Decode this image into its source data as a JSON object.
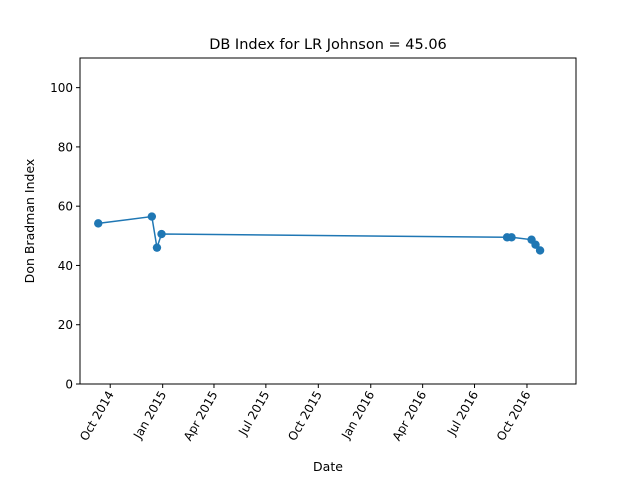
{
  "chart_data": {
    "type": "line",
    "title": "DB Index for LR Johnson = 45.06",
    "xlabel": "Date",
    "ylabel": "Don Bradman Index",
    "xlim": [
      "2014-08-09",
      "2016-12-26"
    ],
    "ylim": [
      0,
      110
    ],
    "x_ticks": [
      {
        "date": "2014-10-01",
        "label": "Oct 2014"
      },
      {
        "date": "2015-01-01",
        "label": "Jan 2015"
      },
      {
        "date": "2015-04-01",
        "label": "Apr 2015"
      },
      {
        "date": "2015-07-01",
        "label": "Jul 2015"
      },
      {
        "date": "2015-10-01",
        "label": "Oct 2015"
      },
      {
        "date": "2016-01-01",
        "label": "Jan 2016"
      },
      {
        "date": "2016-04-01",
        "label": "Apr 2016"
      },
      {
        "date": "2016-07-01",
        "label": "Jul 2016"
      },
      {
        "date": "2016-10-01",
        "label": "Oct 2016"
      }
    ],
    "y_ticks": [
      0,
      20,
      40,
      60,
      80,
      100
    ],
    "grid": false,
    "color": "#1f77b4",
    "series": [
      {
        "x": [
          "2014-09-10",
          "2014-12-13",
          "2014-12-22",
          "2014-12-30",
          "2016-08-27",
          "2016-09-04",
          "2016-10-09",
          "2016-10-16",
          "2016-10-24"
        ],
        "y": [
          54.2,
          56.5,
          46.0,
          50.6,
          49.5,
          49.5,
          48.7,
          47.0,
          45.06
        ]
      }
    ]
  }
}
